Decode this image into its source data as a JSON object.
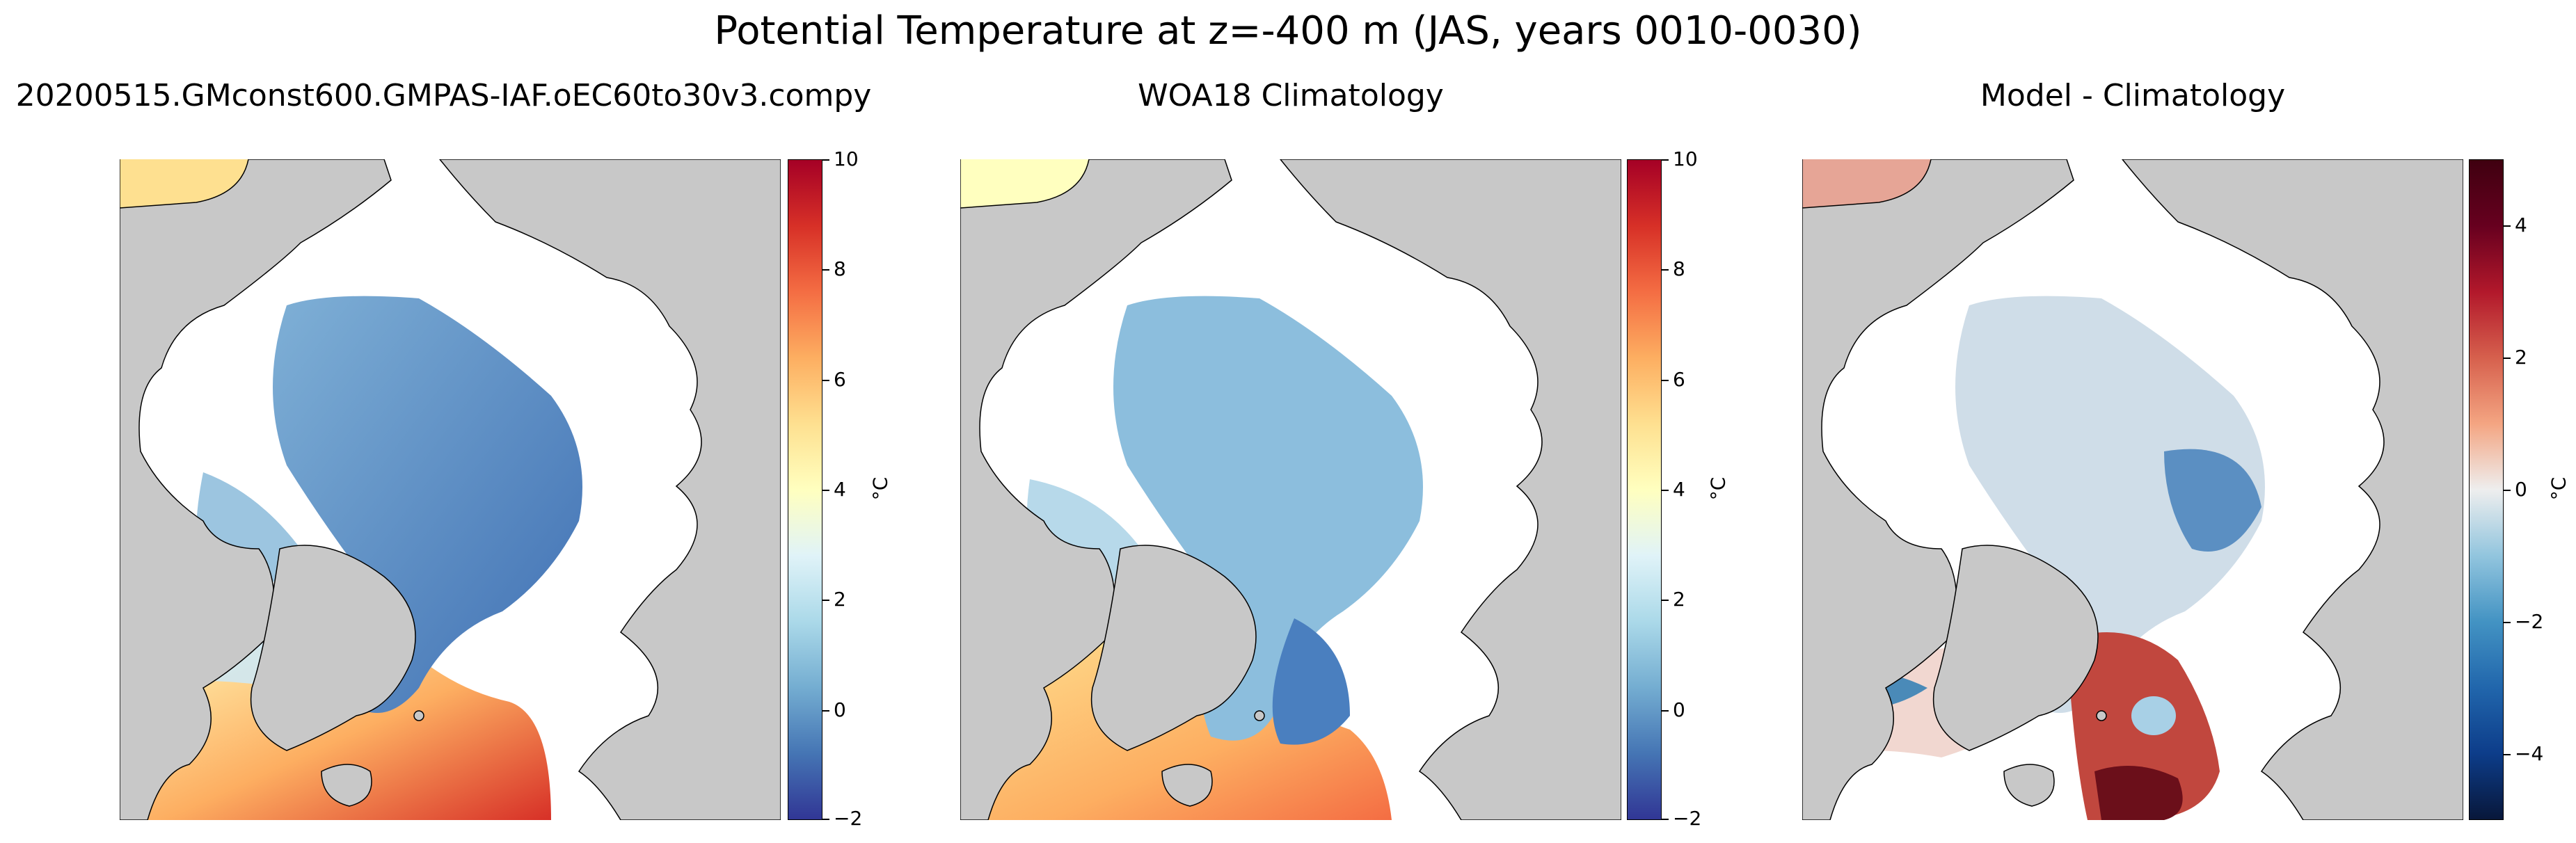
{
  "title": "Potential Temperature at z=-400 m (JAS, years 0010-0030)",
  "panels": [
    {
      "title": "20200515.GMconst600.GMPAS-IAF.oEC60to30v3.compy",
      "colorbar": {
        "colormap": "RdYlBu_r",
        "vmin": -2,
        "vmax": 10,
        "ticks": [
          "10",
          "8",
          "6",
          "4",
          "2",
          "0",
          "−2"
        ],
        "unit": "°C"
      }
    },
    {
      "title": "WOA18 Climatology",
      "colorbar": {
        "colormap": "RdYlBu_r",
        "vmin": -2,
        "vmax": 10,
        "ticks": [
          "10",
          "8",
          "6",
          "4",
          "2",
          "0",
          "−2"
        ],
        "unit": "°C"
      }
    },
    {
      "title": "Model - Climatology",
      "colorbar": {
        "colormap": "RdBu_r",
        "vmin": -5,
        "vmax": 5,
        "ticks": [
          "4",
          "2",
          "0",
          "−2",
          "−4"
        ],
        "unit": "°C"
      }
    }
  ],
  "colors": {
    "land": "#c8c8c8",
    "ice_free_missing": "#ffffff",
    "coast": "#000000"
  }
}
